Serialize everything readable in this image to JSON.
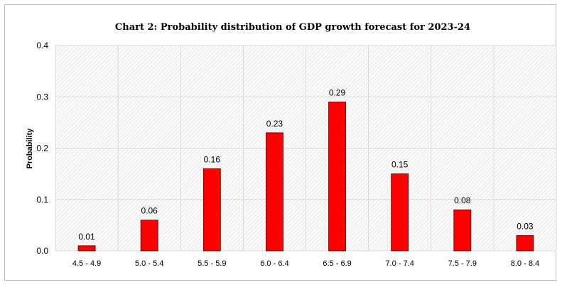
{
  "chart_data": {
    "type": "bar",
    "title": "Chart 2: Probability distribution of  GDP growth forecast for 2023-24",
    "xlabel": "",
    "ylabel": "Probability",
    "categories": [
      "4.5 - 4.9",
      "5.0 - 5.4",
      "5.5 - 5.9",
      "6.0 - 6.4",
      "6.5 - 6.9",
      "7.0 - 7.4",
      "7.5 - 7.9",
      "8.0 - 8.4"
    ],
    "values": [
      0.01,
      0.06,
      0.16,
      0.23,
      0.29,
      0.15,
      0.08,
      0.03
    ],
    "data_labels": [
      "0.01",
      "0.06",
      "0.16",
      "0.23",
      "0.29",
      "0.15",
      "0.08",
      "0.03"
    ],
    "ylim": [
      0,
      0.4
    ],
    "yticks": [
      "0.0",
      "0.1",
      "0.2",
      "0.3",
      "0.4"
    ],
    "grid": true,
    "legend": "none",
    "bar_color": "#ff0000"
  }
}
